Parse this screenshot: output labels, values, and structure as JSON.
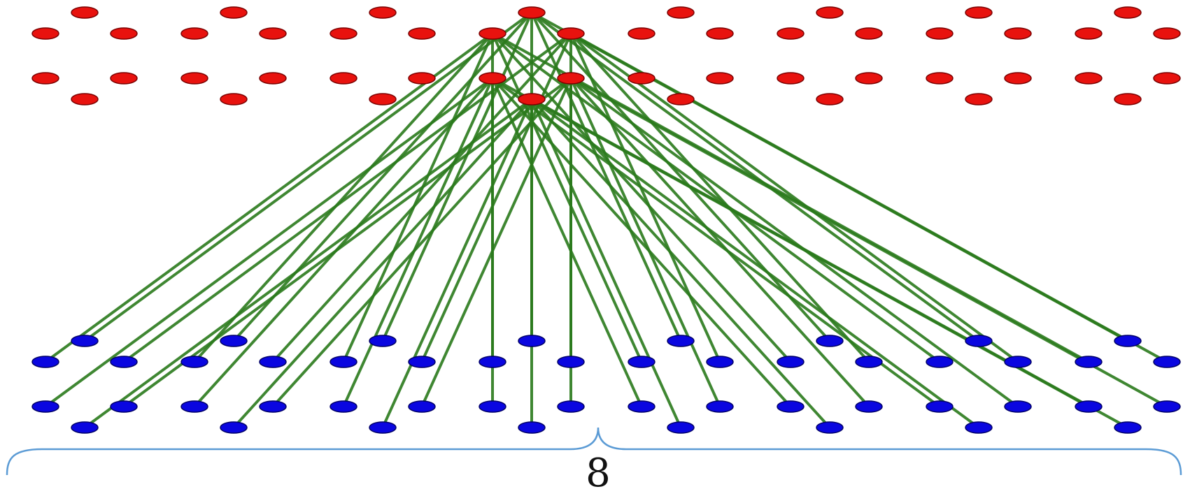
{
  "colors": {
    "top_node": "#e8120e",
    "top_node_stroke": "#7a0000",
    "bottom_node": "#0a06e0",
    "bottom_node_stroke": "#000066",
    "edge": "#2a7a1c",
    "brace": "#5b9bd5"
  },
  "groups": 8,
  "nodes_per_group": 6,
  "connected_group": 3,
  "edges": [
    [
      0,
      0
    ],
    [
      0,
      6
    ],
    [
      0,
      12
    ],
    [
      0,
      18
    ],
    [
      0,
      24
    ],
    [
      0,
      30
    ],
    [
      0,
      36
    ],
    [
      0,
      42
    ],
    [
      1,
      1
    ],
    [
      1,
      7
    ],
    [
      1,
      13
    ],
    [
      1,
      19
    ],
    [
      1,
      25
    ],
    [
      1,
      31
    ],
    [
      1,
      37
    ],
    [
      1,
      43
    ],
    [
      2,
      2
    ],
    [
      2,
      8
    ],
    [
      2,
      14
    ],
    [
      2,
      20
    ],
    [
      2,
      26
    ],
    [
      2,
      32
    ],
    [
      2,
      38
    ],
    [
      2,
      44
    ],
    [
      3,
      3
    ],
    [
      3,
      9
    ],
    [
      3,
      15
    ],
    [
      3,
      21
    ],
    [
      3,
      27
    ],
    [
      3,
      33
    ],
    [
      3,
      39
    ],
    [
      3,
      45
    ],
    [
      4,
      4
    ],
    [
      4,
      10
    ],
    [
      4,
      16
    ],
    [
      4,
      22
    ],
    [
      4,
      28
    ],
    [
      4,
      34
    ],
    [
      4,
      40
    ],
    [
      4,
      46
    ],
    [
      5,
      5
    ],
    [
      5,
      11
    ],
    [
      5,
      17
    ],
    [
      5,
      23
    ],
    [
      5,
      29
    ],
    [
      5,
      35
    ],
    [
      5,
      41
    ],
    [
      5,
      47
    ]
  ],
  "brace": {
    "label": "8"
  }
}
